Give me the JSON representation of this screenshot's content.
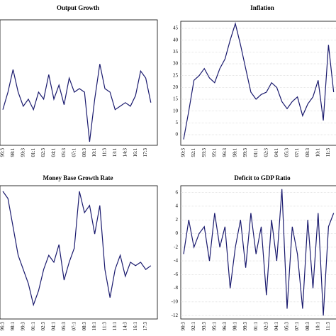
{
  "chart_data": [
    {
      "type": "line",
      "title": "Output Growth",
      "categories": [
        "96:3",
        null,
        "98:1",
        null,
        "99:3",
        null,
        "01:1",
        null,
        "02:3",
        null,
        "04:1",
        null,
        "05:3",
        null,
        "07:1",
        null,
        "08:3",
        null,
        "10:1",
        null,
        "11:3",
        null,
        "13:1",
        null,
        "14:3",
        null,
        "16:1",
        null,
        "17:3",
        null
      ],
      "values": [
        -2.9,
        0.6,
        5.1,
        0.6,
        -2.2,
        -0.8,
        -2.9,
        0.6,
        -0.8,
        4.1,
        -0.8,
        2.0,
        -1.9,
        3.4,
        0.6,
        1.3,
        0.6,
        -9.3,
        -0.8,
        6.2,
        1.3,
        0.6,
        -2.9,
        -2.2,
        -1.5,
        -2.2,
        -0.1,
        4.8,
        3.4,
        -1.5
      ],
      "color": "#1a1a6e",
      "ylim": [
        -10,
        15
      ]
    },
    {
      "type": "line",
      "title": "Inflation",
      "categories": [
        "90:3",
        null,
        "92:1",
        null,
        "93:3",
        null,
        "95:1",
        null,
        "96:3",
        null,
        "98:1",
        null,
        "99:3",
        null,
        "01:1",
        null,
        "02:3",
        null,
        "04:1",
        null,
        "05:3",
        null,
        "07:1",
        null,
        "08:3",
        null,
        "10:1",
        null,
        "11:3",
        null
      ],
      "values": [
        -2,
        10,
        23,
        25,
        28,
        24,
        22,
        28,
        32,
        40,
        47,
        38,
        28,
        18,
        15,
        17,
        18,
        22,
        20,
        14,
        11,
        14,
        16,
        8,
        13,
        16,
        23,
        6,
        38,
        18
      ],
      "color": "#1a1a6e",
      "ylim": [
        -4.5,
        48
      ],
      "yticks": [
        0,
        5,
        10,
        15,
        20,
        25,
        30,
        35,
        40,
        45
      ],
      "grid": true
    },
    {
      "type": "line",
      "title": "Money Base Growth Rate",
      "categories": [
        "96:3",
        null,
        "98:1",
        null,
        "99:3",
        null,
        "01:1",
        null,
        "02:3",
        null,
        "04:1",
        null,
        "05:3",
        null,
        "07:1",
        null,
        "08:3",
        null,
        "10:1",
        null,
        "11:3",
        null,
        "13:1",
        null,
        "14:3",
        null,
        "16:1",
        null,
        "17:3",
        null
      ],
      "values": [
        27.9,
        25.2,
        14.6,
        3.9,
        -1.4,
        -6.7,
        -14.7,
        -9.4,
        -1.4,
        3.9,
        1.3,
        7.9,
        -5.4,
        1.3,
        6.6,
        27.9,
        19.9,
        22.6,
        11.9,
        22.6,
        -1.4,
        -12.0,
        -1.4,
        3.9,
        -4.0,
        1.3,
        0.0,
        1.3,
        -1.4,
        0.0
      ],
      "color": "#1a1a6e",
      "ylim": [
        -20,
        30
      ]
    },
    {
      "type": "line",
      "title": "Deficit to GDP Ratio",
      "categories": [
        "90:3",
        null,
        "92:1",
        null,
        "93:3",
        null,
        "95:1",
        null,
        "96:3",
        null,
        "98:1",
        null,
        "99:3",
        null,
        "01:1",
        null,
        "02:3",
        null,
        "04:1",
        null,
        "05:3",
        null,
        "07:1",
        null,
        "08:3",
        null,
        "10:1",
        null,
        "11:3",
        null
      ],
      "values": [
        -3,
        2,
        -2,
        0,
        1,
        -4,
        3,
        -2,
        1,
        -8,
        -2,
        2,
        -5,
        3,
        -3,
        1,
        -9,
        2,
        -4,
        6.5,
        -11,
        1,
        -3,
        -11,
        2,
        -8,
        3,
        -12,
        1,
        3
      ],
      "color": "#1a1a6e",
      "ylim": [
        -12.5,
        7
      ],
      "yticks": [
        -12,
        -10,
        -8,
        -6,
        -4,
        -2,
        0,
        2,
        4,
        6
      ],
      "grid": true
    }
  ]
}
